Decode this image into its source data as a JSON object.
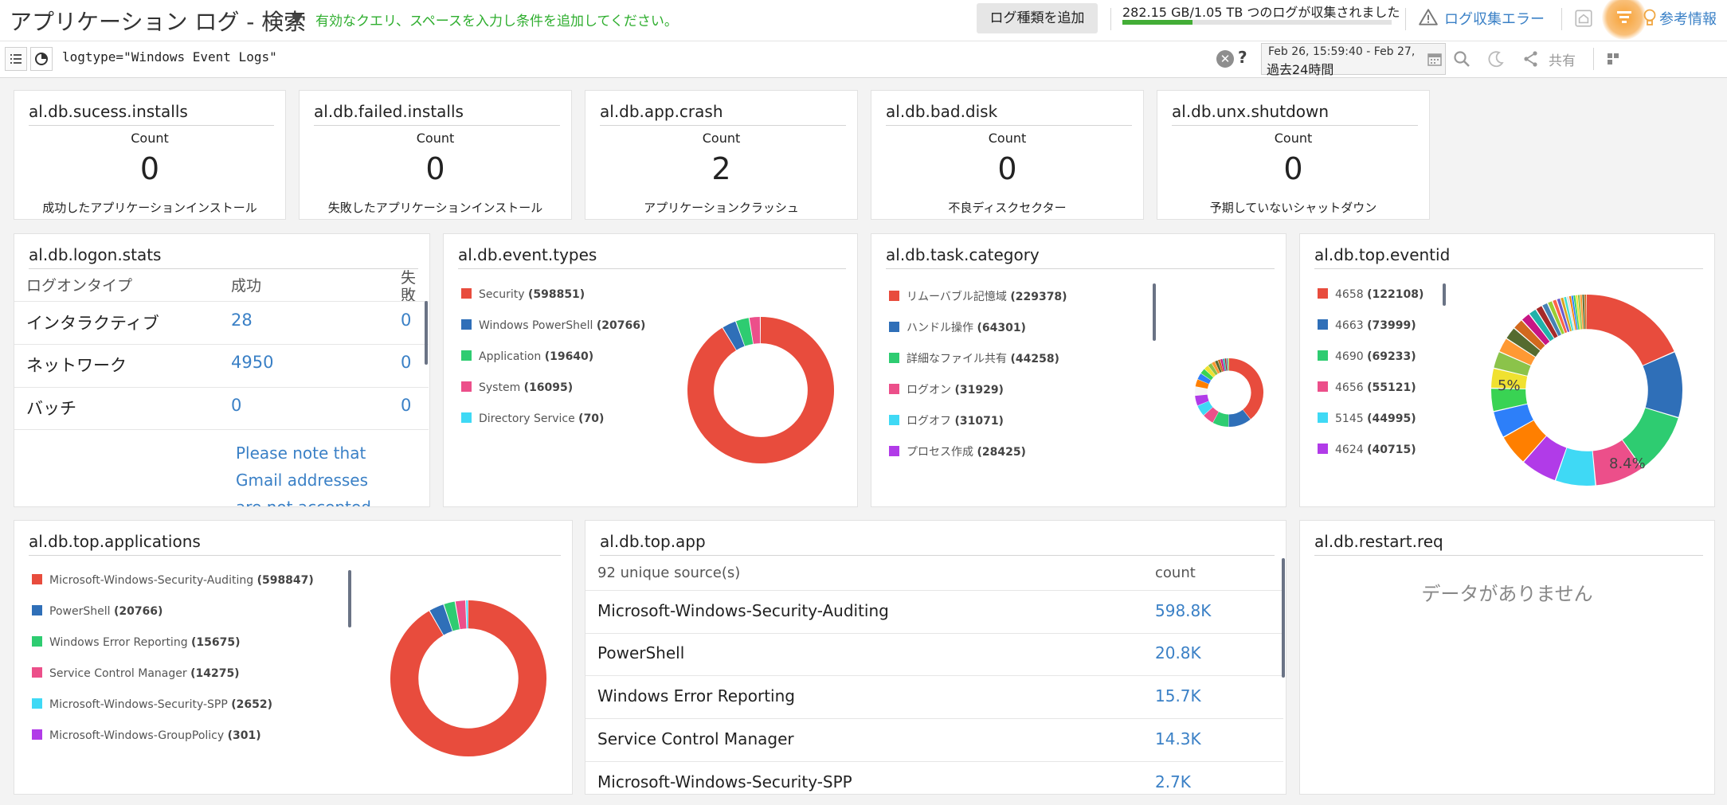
{
  "header": {
    "title": "アプリケーション ログ - 検索",
    "hint": "有効なクエリ、スペースを入力し条件を追加してください。",
    "add_log_type": "ログ種類を追加",
    "storage_text": "282.15 GB/1.05 TB つのログが収集されました",
    "storage_fraction": 0.26,
    "log_error": "ログ収集エラー",
    "help": "参考情報"
  },
  "query": {
    "text": "logtype=\"Windows Event Logs\"",
    "time_range": "Feb 26, 15:59:40 - Feb 27, ...",
    "time_label": "過去24時間",
    "share": "共有"
  },
  "count_widgets": [
    {
      "title": "al.db.sucess.installs",
      "label": "Count",
      "value": "0",
      "desc": "成功したアプリケーションインストール"
    },
    {
      "title": "al.db.failed.installs",
      "label": "Count",
      "value": "0",
      "desc": "失敗したアプリケーションインストール"
    },
    {
      "title": "al.db.app.crash",
      "label": "Count",
      "value": "2",
      "desc": "アプリケーションクラッシュ"
    },
    {
      "title": "al.db.bad.disk",
      "label": "Count",
      "value": "0",
      "desc": "不良ディスクセクター"
    },
    {
      "title": "al.db.unx.shutdown",
      "label": "Count",
      "value": "0",
      "desc": "予期していないシャットダウン"
    }
  ],
  "logon_stats": {
    "title": "al.db.logon.stats",
    "headers": [
      "ログオンタイプ",
      "成功",
      "失敗"
    ],
    "rows": [
      {
        "type": "インタラクティブ",
        "success": "28",
        "fail": "0"
      },
      {
        "type": "ネットワーク",
        "success": "4950",
        "fail": "0"
      },
      {
        "type": "バッチ",
        "success": "0",
        "fail": "0"
      }
    ],
    "note": "Please note that Gmail addresses are not accepted"
  },
  "event_types": {
    "title": "al.db.event.types",
    "items": [
      {
        "name": "Security",
        "count": "(598851)",
        "value": 598851,
        "color": "#e84c3d"
      },
      {
        "name": "Windows PowerShell",
        "count": "(20766)",
        "value": 20766,
        "color": "#2f6fb8"
      },
      {
        "name": "Application",
        "count": "(19640)",
        "value": 19640,
        "color": "#2ecc71"
      },
      {
        "name": "System",
        "count": "(16095)",
        "value": 16095,
        "color": "#ec4f8a"
      },
      {
        "name": "Directory Service",
        "count": "(70)",
        "value": 70,
        "color": "#3fd9f5"
      }
    ]
  },
  "task_category": {
    "title": "al.db.task.category",
    "items": [
      {
        "name": "リムーバブル記憶域",
        "count": "(229378)",
        "value": 229378,
        "color": "#e84c3d"
      },
      {
        "name": "ハンドル操作",
        "count": "(64301)",
        "value": 64301,
        "color": "#2f6fb8"
      },
      {
        "name": "詳細なファイル共有",
        "count": "(44258)",
        "value": 44258,
        "color": "#2ecc71"
      },
      {
        "name": "ログオン",
        "count": "(31929)",
        "value": 31929,
        "color": "#ec4f8a"
      },
      {
        "name": "ログオフ",
        "count": "(31071)",
        "value": 31071,
        "color": "#3fd9f5"
      },
      {
        "name": "プロセス作成",
        "count": "(28425)",
        "value": 28425,
        "color": "#b13be8"
      }
    ]
  },
  "top_eventid": {
    "title": "al.db.top.eventid",
    "items": [
      {
        "name": "4658",
        "count": "(122108)",
        "value": 122108,
        "color": "#e84c3d"
      },
      {
        "name": "4663",
        "count": "(73999)",
        "value": 73999,
        "color": "#2f6fb8"
      },
      {
        "name": "4690",
        "count": "(69233)",
        "value": 69233,
        "color": "#2ecc71"
      },
      {
        "name": "4656",
        "count": "(55121)",
        "value": 55121,
        "color": "#ec4f8a"
      },
      {
        "name": "5145",
        "count": "(44995)",
        "value": 44995,
        "color": "#3fd9f5"
      },
      {
        "name": "4624",
        "count": "(40715)",
        "value": 40715,
        "color": "#b13be8"
      }
    ],
    "labels": [
      "8.4%",
      "5%"
    ]
  },
  "top_applications": {
    "title": "al.db.top.applications",
    "items": [
      {
        "name": "Microsoft-Windows-Security-Auditing",
        "count": "(598847)",
        "value": 598847,
        "color": "#e84c3d"
      },
      {
        "name": "PowerShell",
        "count": "(20766)",
        "value": 20766,
        "color": "#2f6fb8"
      },
      {
        "name": "Windows Error Reporting",
        "count": "(15675)",
        "value": 15675,
        "color": "#2ecc71"
      },
      {
        "name": "Service Control Manager",
        "count": "(14275)",
        "value": 14275,
        "color": "#ec4f8a"
      },
      {
        "name": "Microsoft-Windows-Security-SPP",
        "count": "(2652)",
        "value": 2652,
        "color": "#3fd9f5"
      },
      {
        "name": "Microsoft-Windows-GroupPolicy",
        "count": "(301)",
        "value": 301,
        "color": "#b13be8"
      }
    ]
  },
  "top_app": {
    "title": "al.db.top.app",
    "headers": [
      "92 unique source(s)",
      "count"
    ],
    "rows": [
      {
        "source": "Microsoft-Windows-Security-Auditing",
        "count": "598.8K"
      },
      {
        "source": "PowerShell",
        "count": "20.8K"
      },
      {
        "source": "Windows Error Reporting",
        "count": "15.7K"
      },
      {
        "source": "Service Control Manager",
        "count": "14.3K"
      },
      {
        "source": "Microsoft-Windows-Security-SPP",
        "count": "2.7K"
      }
    ]
  },
  "restart_req": {
    "title": "al.db.restart.req",
    "no_data": "データがありません"
  }
}
